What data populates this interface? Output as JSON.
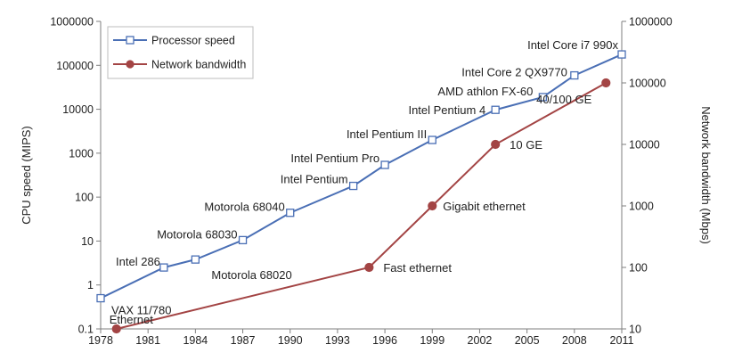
{
  "chart_data": {
    "type": "line",
    "title": "",
    "xlabel": "",
    "ylabel_left": "CPU speed (MIPS)",
    "ylabel_right": "Network bandwidth (Mbps)",
    "x_ticks": [
      1978,
      1981,
      1984,
      1987,
      1990,
      1993,
      1996,
      1999,
      2002,
      2005,
      2008,
      2011
    ],
    "xlim": [
      1978,
      2011
    ],
    "ylim_left": [
      0.1,
      1000000
    ],
    "ylim_right": [
      10,
      1000000
    ],
    "y_ticks_left": [
      "0.1",
      "1",
      "10",
      "100",
      "1000",
      "10000",
      "100000",
      "1000000"
    ],
    "y_ticks_right": [
      "10",
      "100",
      "1000",
      "10000",
      "100000",
      "1000000"
    ],
    "legend": {
      "position": "top-left",
      "entries": [
        "Processor speed",
        "Network bandwidth"
      ]
    },
    "series": [
      {
        "name": "Processor speed",
        "axis": "left",
        "color": "#4a6fb5",
        "marker": "square",
        "points": [
          {
            "x": 1978,
            "y": 0.5,
            "label": "VAX 11/780"
          },
          {
            "x": 1982,
            "y": 2.5,
            "label": "Intel 286"
          },
          {
            "x": 1984,
            "y": 3.8,
            "label": ""
          },
          {
            "x": 1987,
            "y": 10.5,
            "label": "Motorola 68030"
          },
          {
            "x": 1990,
            "y": 44,
            "label": "Motorola 68040"
          },
          {
            "x": 1994,
            "y": 180,
            "label": "Intel Pentium"
          },
          {
            "x": 1996,
            "y": 541,
            "label": "Intel Pentium Pro"
          },
          {
            "x": 1999,
            "y": 2000,
            "label": "Intel Pentium III"
          },
          {
            "x": 2003,
            "y": 9700,
            "label": "Intel Pentium 4"
          },
          {
            "x": 2006,
            "y": 18900,
            "label": "AMD athlon FX-60"
          },
          {
            "x": 2008,
            "y": 59000,
            "label": "Intel Core 2 QX9770"
          },
          {
            "x": 2011,
            "y": 177000,
            "label": "Intel Core i7 990x"
          }
        ]
      },
      {
        "name": "Network bandwidth",
        "axis": "right",
        "color": "#a34444",
        "marker": "circle",
        "points": [
          {
            "x": 1979,
            "y": 10,
            "label": "Ethernet"
          },
          {
            "x": 1995,
            "y": 100,
            "label": "Fast ethernet"
          },
          {
            "x": 1999,
            "y": 1000,
            "label": "Gigabit ethernet"
          },
          {
            "x": 2003,
            "y": 10000,
            "label": "10 GE"
          },
          {
            "x": 2010,
            "y": 100000,
            "label": "40/100 GE"
          }
        ]
      }
    ],
    "annotations": [
      {
        "text": "Motorola 68020",
        "x": 1984,
        "y": 3.8
      }
    ]
  }
}
